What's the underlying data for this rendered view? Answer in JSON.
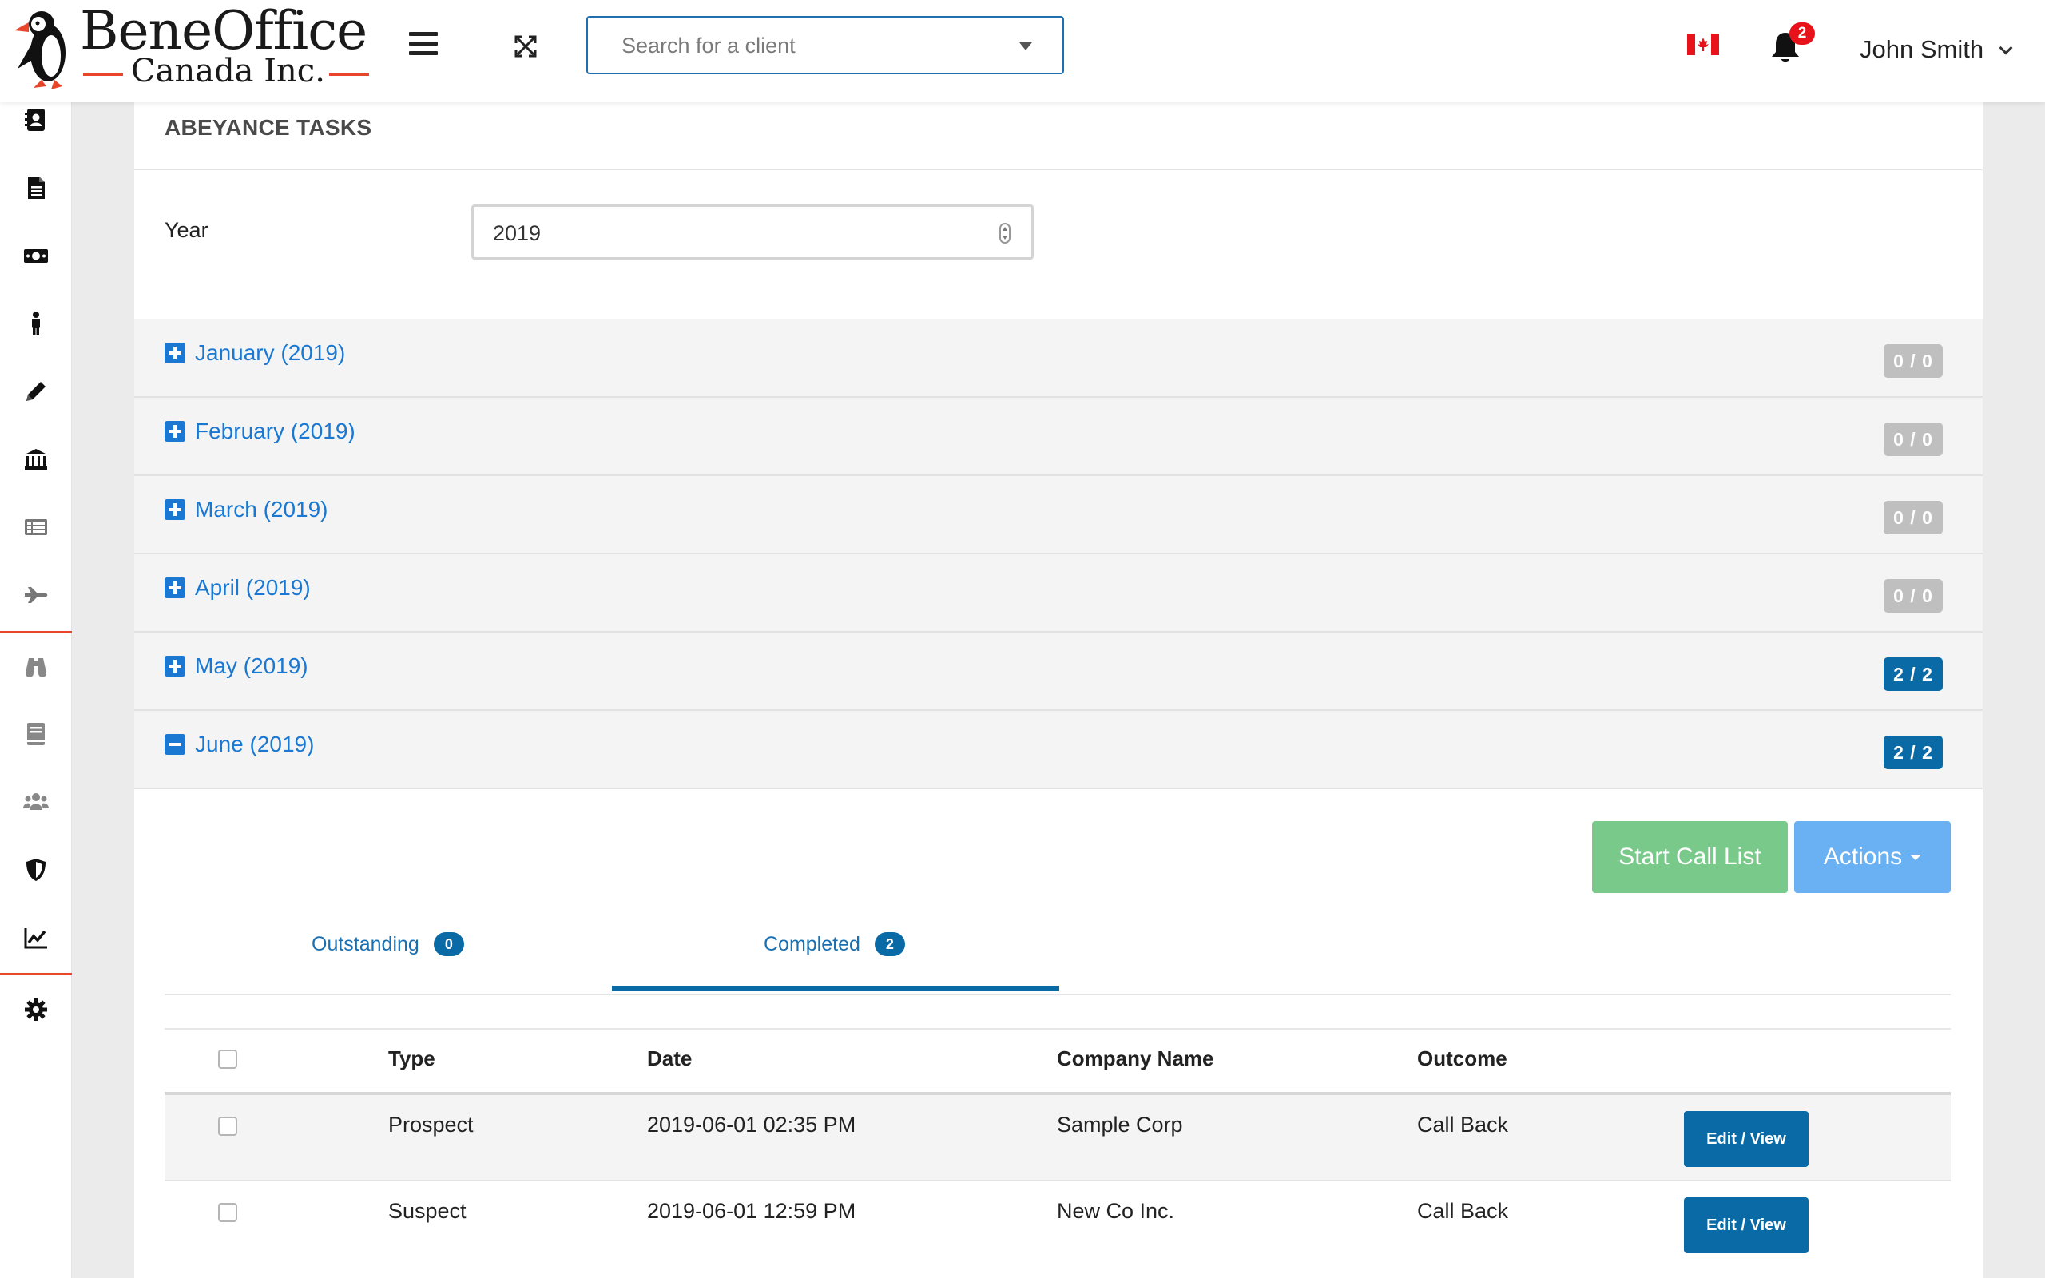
{
  "brand": {
    "name": "BeneOffice",
    "subtitle": "Canada Inc."
  },
  "header": {
    "search_placeholder": "Search for a client",
    "notification_count": "2",
    "user_name": "John Smith"
  },
  "colors": {
    "accent": "#1a78d2",
    "badge_dark": "#0a6aa6",
    "badge_grey": "#bfbfbf",
    "start_call": "#79c98a",
    "actions": "#69b1f2",
    "brand_red": "#e8452b"
  },
  "sidebar": {
    "icons": [
      "contacts-icon",
      "document-icon",
      "money-icon",
      "person-icon",
      "pencil-icon",
      "bank-icon",
      "list-icon",
      "plane-icon",
      "binoculars-icon",
      "book-icon",
      "group-icon",
      "shield-icon",
      "chart-icon",
      "settings-icon"
    ]
  },
  "page": {
    "title": "ABEYANCE TASKS",
    "year_label": "Year",
    "year_value": "2019"
  },
  "months": [
    {
      "name": "January (2019)",
      "count": "0 / 0",
      "expanded": false
    },
    {
      "name": "February (2019)",
      "count": "0 / 0",
      "expanded": false
    },
    {
      "name": "March (2019)",
      "count": "0 / 0",
      "expanded": false
    },
    {
      "name": "April (2019)",
      "count": "0 / 0",
      "expanded": false
    },
    {
      "name": "May (2019)",
      "count": "2 / 2",
      "expanded": false
    },
    {
      "name": "June (2019)",
      "count": "2 / 2",
      "expanded": true
    }
  ],
  "buttons": {
    "start_call_list": "Start Call List",
    "actions": "Actions"
  },
  "tabs": [
    {
      "label": "Outstanding",
      "count": "0",
      "active": false
    },
    {
      "label": "Completed",
      "count": "2",
      "active": true
    }
  ],
  "table": {
    "headers": [
      "Type",
      "Date",
      "Company Name",
      "Outcome"
    ],
    "rows": [
      {
        "type": "Prospect",
        "date": "2019-06-01 02:35 PM",
        "company": "Sample Corp",
        "outcome": "Call Back",
        "action": "Edit / View"
      },
      {
        "type": "Suspect",
        "date": "2019-06-01 12:59 PM",
        "company": "New Co Inc.",
        "outcome": "Call Back",
        "action": "Edit / View"
      }
    ]
  }
}
